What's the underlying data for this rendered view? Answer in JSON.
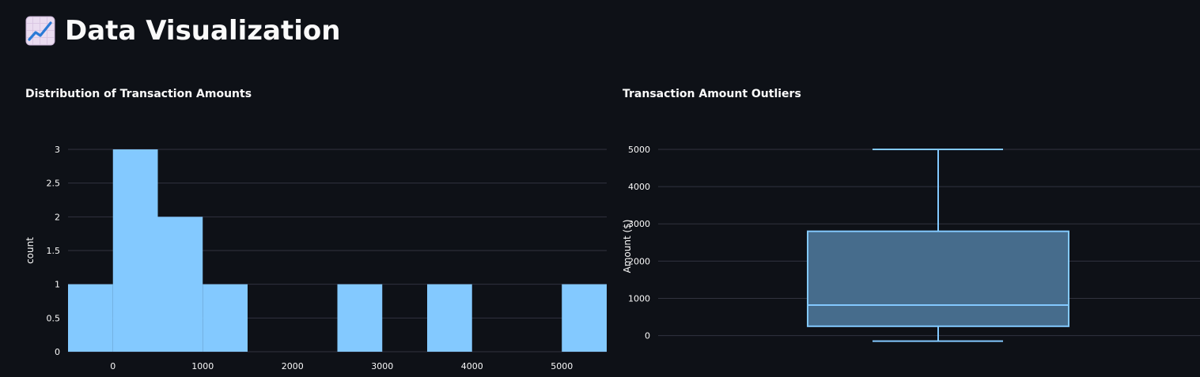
{
  "page": {
    "title": "Data Visualization",
    "title_icon": "chart-increasing-icon"
  },
  "chart_data": [
    {
      "type": "bar",
      "subtype": "histogram",
      "title": "Distribution of Transaction Amounts",
      "xlabel": "",
      "ylabel": "count",
      "bins": [
        {
          "start": -500,
          "end": 0,
          "count": 1
        },
        {
          "start": 0,
          "end": 500,
          "count": 3
        },
        {
          "start": 500,
          "end": 1000,
          "count": 2
        },
        {
          "start": 1000,
          "end": 1500,
          "count": 1
        },
        {
          "start": 1500,
          "end": 2000,
          "count": 0
        },
        {
          "start": 2000,
          "end": 2500,
          "count": 0
        },
        {
          "start": 2500,
          "end": 3000,
          "count": 1
        },
        {
          "start": 3000,
          "end": 3500,
          "count": 0
        },
        {
          "start": 3500,
          "end": 4000,
          "count": 1
        },
        {
          "start": 4000,
          "end": 4500,
          "count": 0
        },
        {
          "start": 4500,
          "end": 5000,
          "count": 0
        },
        {
          "start": 5000,
          "end": 5500,
          "count": 1
        }
      ],
      "xlim": [
        -500,
        5500
      ],
      "ylim": [
        0,
        3
      ],
      "x_ticks": [
        {
          "value": 0,
          "label": "0"
        },
        {
          "value": 1000,
          "label": "1000"
        },
        {
          "value": 2000,
          "label": "2000"
        },
        {
          "value": 3000,
          "label": "3000"
        },
        {
          "value": 4000,
          "label": "4000"
        },
        {
          "value": 5000,
          "label": "5000"
        }
      ],
      "y_ticks": [
        {
          "value": 0,
          "label": "0"
        },
        {
          "value": 0.5,
          "label": "0.5"
        },
        {
          "value": 1,
          "label": "1"
        },
        {
          "value": 1.5,
          "label": "1.5"
        },
        {
          "value": 2,
          "label": "2"
        },
        {
          "value": 2.5,
          "label": "2.5"
        },
        {
          "value": 3,
          "label": "3"
        }
      ],
      "grid": true,
      "color": "#83c9ff"
    },
    {
      "type": "box",
      "title": "Transaction Amount Outliers",
      "xlabel": "",
      "ylabel": "Amount ($)",
      "box": {
        "whisker_low": -150,
        "q1": 250,
        "median": 820,
        "q3": 2800,
        "whisker_high": 5000
      },
      "ylim": [
        -200,
        5000
      ],
      "y_ticks": [
        {
          "value": 0,
          "label": "0"
        },
        {
          "value": 1000,
          "label": "1000"
        },
        {
          "value": 2000,
          "label": "2000"
        },
        {
          "value": 3000,
          "label": "3000"
        },
        {
          "value": 4000,
          "label": "4000"
        },
        {
          "value": 5000,
          "label": "5000"
        }
      ],
      "grid": true,
      "color": "#83c9ff",
      "fill_color": "#466c8c"
    }
  ]
}
